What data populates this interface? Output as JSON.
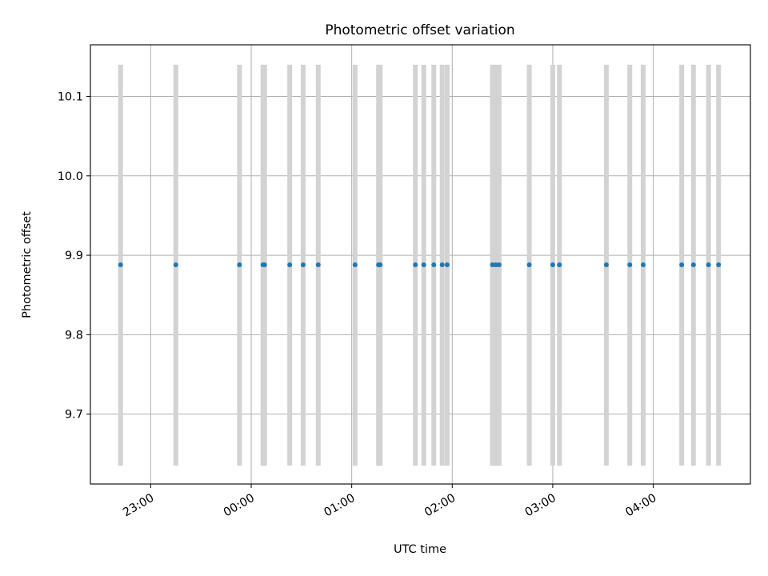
{
  "chart_data": {
    "type": "scatter",
    "title": "Photometric offset variation",
    "xlabel": "UTC time",
    "ylabel": "Photometric offset",
    "xlim": [
      "22:24",
      "04:58"
    ],
    "ylim": [
      9.612,
      10.165
    ],
    "x_ticks": [
      "23:00",
      "00:00",
      "01:00",
      "02:00",
      "03:00",
      "04:00"
    ],
    "y_ticks": [
      9.7,
      9.8,
      9.9,
      10.0,
      10.1
    ],
    "grid": true,
    "colors": {
      "points": "#1f77b4",
      "error_bars": "#d3d3d3",
      "grid": "#b0b0b0"
    },
    "error_bar": {
      "lower": 9.635,
      "upper": 10.14
    },
    "points": [
      {
        "x": "22:42",
        "y": 9.888
      },
      {
        "x": "23:15",
        "y": 9.888
      },
      {
        "x": "23:53",
        "y": 9.888
      },
      {
        "x": "00:07",
        "y": 9.888
      },
      {
        "x": "00:08",
        "y": 9.888
      },
      {
        "x": "00:23",
        "y": 9.888
      },
      {
        "x": "00:31",
        "y": 9.888
      },
      {
        "x": "00:40",
        "y": 9.888
      },
      {
        "x": "01:02",
        "y": 9.888
      },
      {
        "x": "01:16",
        "y": 9.888
      },
      {
        "x": "01:17",
        "y": 9.888
      },
      {
        "x": "01:38",
        "y": 9.888
      },
      {
        "x": "01:43",
        "y": 9.888
      },
      {
        "x": "01:49",
        "y": 9.888
      },
      {
        "x": "01:54",
        "y": 9.888
      },
      {
        "x": "01:57",
        "y": 9.888
      },
      {
        "x": "02:24",
        "y": 9.888
      },
      {
        "x": "02:26",
        "y": 9.888
      },
      {
        "x": "02:28",
        "y": 9.888
      },
      {
        "x": "02:46",
        "y": 9.888
      },
      {
        "x": "03:00",
        "y": 9.888
      },
      {
        "x": "03:04",
        "y": 9.888
      },
      {
        "x": "03:32",
        "y": 9.888
      },
      {
        "x": "03:46",
        "y": 9.888
      },
      {
        "x": "03:54",
        "y": 9.888
      },
      {
        "x": "04:17",
        "y": 9.888
      },
      {
        "x": "04:24",
        "y": 9.888
      },
      {
        "x": "04:33",
        "y": 9.888
      },
      {
        "x": "04:39",
        "y": 9.888
      }
    ]
  }
}
